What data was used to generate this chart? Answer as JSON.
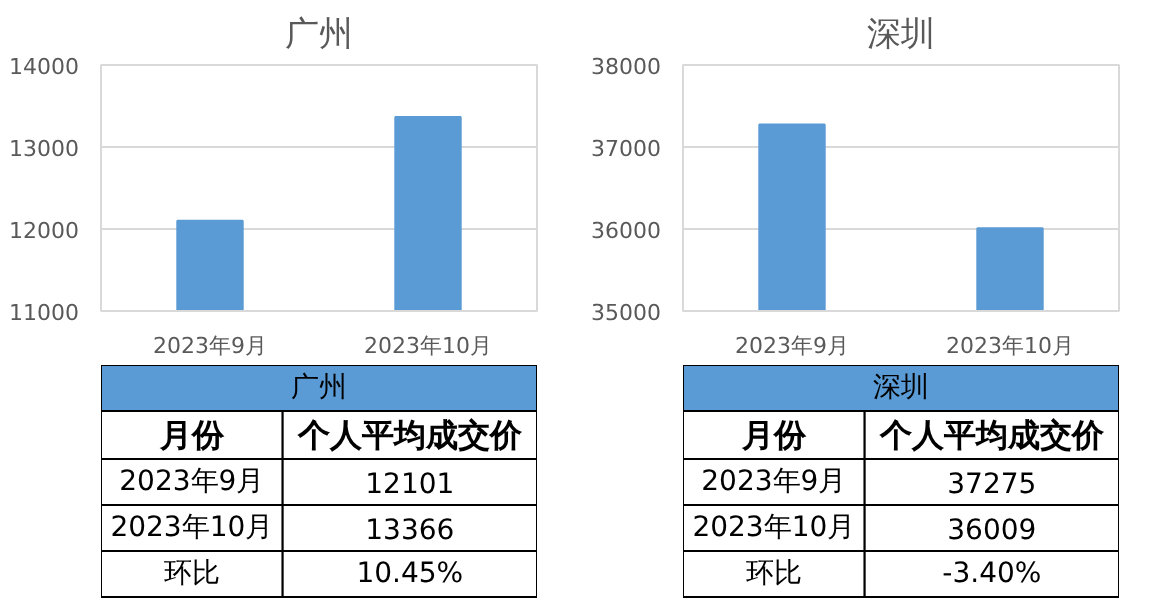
{
  "chart_data": [
    {
      "type": "bar",
      "title": "广州",
      "categories": [
        "2023年9月",
        "2023年10月"
      ],
      "values": [
        12101,
        13366
      ],
      "color": "#5b9bd5",
      "ylim": [
        11000,
        14000
      ],
      "yticks": [
        11000,
        12000,
        13000,
        14000
      ],
      "grid": "y",
      "annotations": [
        "月份",
        "个人平均成交价",
        "2023年9月",
        "12101",
        "2023年10月",
        "13366",
        "环比",
        "10.45%"
      ]
    },
    {
      "type": "bar",
      "title": "深圳",
      "categories": [
        "2023年9月",
        "2023年10月"
      ],
      "values": [
        37275,
        36009
      ],
      "color": "#5b9bd5",
      "ylim": [
        35000,
        38000
      ],
      "yticks": [
        35000,
        36000,
        37000,
        38000
      ],
      "grid": "y",
      "annotations": [
        "月份",
        "个人平均成交价",
        "2023年9月",
        "37275",
        "2023年10月",
        "36009",
        "环比",
        "-3.40%"
      ]
    }
  ]
}
